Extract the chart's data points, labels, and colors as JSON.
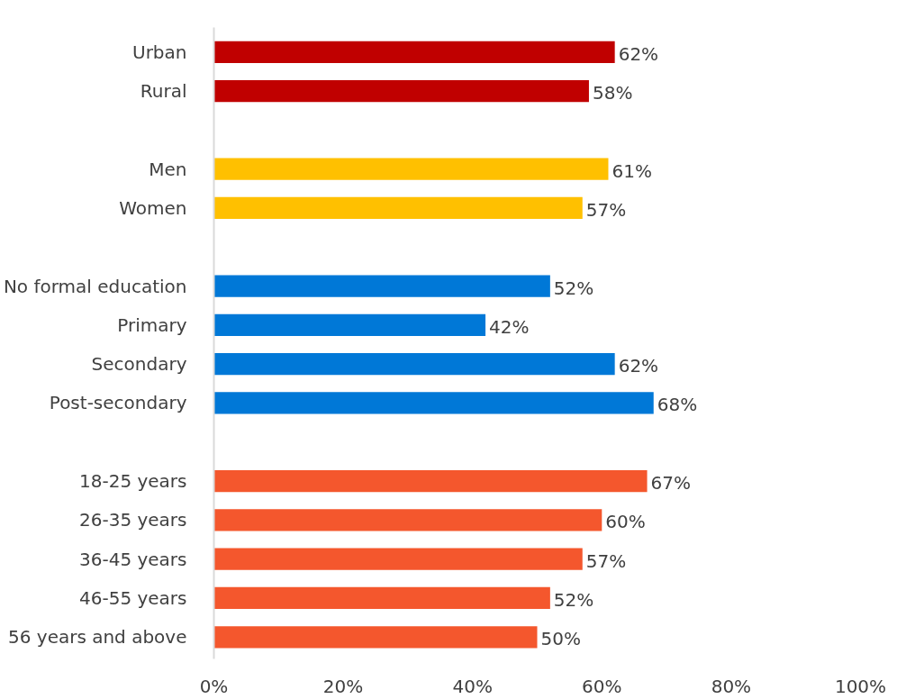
{
  "chart_data": {
    "type": "bar",
    "orientation": "horizontal",
    "categories": [
      "Urban",
      "Rural",
      null,
      "Men",
      "Women",
      null,
      "No formal education",
      "Primary",
      "Secondary",
      "Post-secondary",
      null,
      "18-25 years",
      "26-35 years",
      "36-45 years",
      "46-55 years",
      "56 years and above"
    ],
    "values": [
      62,
      58,
      null,
      61,
      57,
      null,
      52,
      42,
      62,
      68,
      null,
      67,
      60,
      57,
      52,
      50
    ],
    "colors": [
      "#c00000",
      "#c00000",
      null,
      "#ffc000",
      "#ffc000",
      null,
      "#0078d7",
      "#0078d7",
      "#0078d7",
      "#0078d7",
      null,
      "#f4572d",
      "#f4572d",
      "#f4572d",
      "#f4572d",
      "#f4572d"
    ],
    "value_labels": [
      "62%",
      "58%",
      null,
      "61%",
      "57%",
      null,
      "52%",
      "42%",
      "62%",
      "68%",
      null,
      "67%",
      "60%",
      "57%",
      "52%",
      "50%"
    ],
    "xlim": [
      0,
      100
    ],
    "xticks": [
      {
        "value": 0,
        "label": "0%"
      },
      {
        "value": 20,
        "label": "20%"
      },
      {
        "value": 40,
        "label": "40%"
      },
      {
        "value": 60,
        "label": "60%"
      },
      {
        "value": 80,
        "label": "80%"
      },
      {
        "value": 100,
        "label": "100%"
      }
    ],
    "grid": false
  }
}
